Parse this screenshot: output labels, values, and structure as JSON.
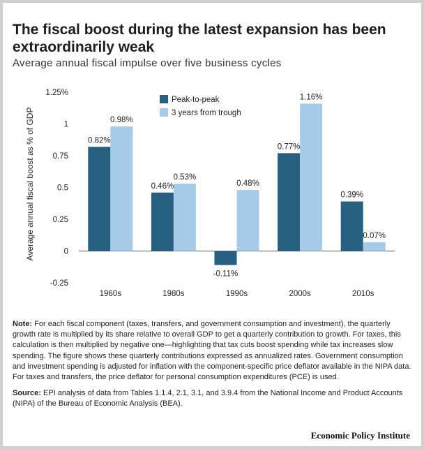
{
  "header": {
    "title": "The fiscal boost during the latest expansion has been extraordinarily weak",
    "subtitle": "Average annual fiscal impulse over five business cycles"
  },
  "colors": {
    "series1": "#265f80",
    "series2": "#a6cbe9",
    "axis": "#333333"
  },
  "chart_data": {
    "type": "bar",
    "categories": [
      "1960s",
      "1980s",
      "1990s",
      "2000s",
      "2010s"
    ],
    "series": [
      {
        "name": "Peak-to-peak",
        "values": [
          0.82,
          0.46,
          -0.11,
          0.77,
          0.39
        ],
        "labels": [
          "0.82%",
          "0.46%",
          "-0.11%",
          "0.77%",
          "0.39%"
        ]
      },
      {
        "name": "3 years from trough",
        "values": [
          0.98,
          0.53,
          0.48,
          1.16,
          0.07
        ],
        "labels": [
          "0.98%",
          "0.53%",
          "0.48%",
          "1.16%",
          "0.07%"
        ]
      }
    ],
    "ylabel": "Average annual fiscal boost as % of GDP",
    "ylim": [
      -0.25,
      1.25
    ],
    "yticks": [
      {
        "value": 1.25,
        "label": "1.25%"
      },
      {
        "value": 1,
        "label": "1"
      },
      {
        "value": 0.75,
        "label": "0.75"
      },
      {
        "value": 0.5,
        "label": "0.5"
      },
      {
        "value": 0.25,
        "label": "0.25"
      },
      {
        "value": 0,
        "label": "0"
      },
      {
        "value": -0.25,
        "label": "-0.25"
      }
    ],
    "legend_position": "top-left"
  },
  "notes": {
    "note_label": "Note:",
    "note_text": "For each fiscal component (taxes, transfers, and government consumption and investment), the quarterly growth rate is multiplied by its share relative to overall GDP to get a quarterly contribution to growth. For taxes, this calculation is then multiplied by negative one—highlighting that tax cuts boost spending while tax increases slow spending. The figure shows these quarterly contributions expressed as annualized rates. Government consumption and investment spending is adjusted for inflation with the component-specific price deflator available in the NIPA data. For taxes and transfers, the price deflator for personal consumption expenditures (PCE) is used.",
    "source_label": "Source:",
    "source_text": "EPI analysis of data from Tables 1.1.4, 2.1, 3.1, and 3.9.4 from the National Income and Product Accounts (NIPA) of the Bureau of Economic Analysis (BEA)."
  },
  "footer": {
    "brand": "Economic Policy Institute"
  }
}
